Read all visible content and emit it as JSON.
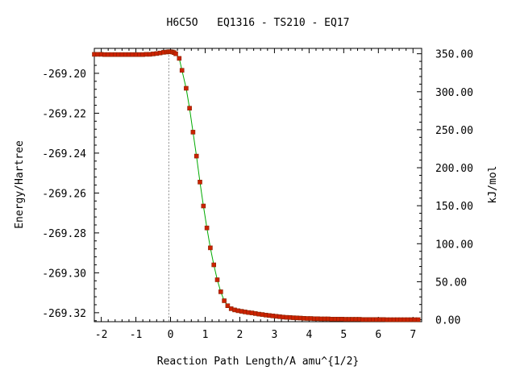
{
  "chart_data": {
    "type": "line",
    "title": "H6C5O   EQ1316 - TS210 - EQ17",
    "xlabel": "Reaction Path Length/A amu^{1/2}",
    "ylabel": "Energy/Hartree",
    "y2label": "kJ/mol",
    "xlim": [
      -2.2,
      7.25
    ],
    "ylim": [
      -269.3245,
      -269.1875
    ],
    "x_ticks": [
      -2,
      -1,
      0,
      1,
      2,
      3,
      4,
      5,
      6,
      7
    ],
    "x_tick_labels": [
      "-2",
      "-1",
      "0",
      "1",
      "2",
      "3",
      "4",
      "5",
      "6",
      "7"
    ],
    "y_ticks": [
      -269.32,
      -269.3,
      -269.28,
      -269.26,
      -269.24,
      -269.22,
      -269.2
    ],
    "y_tick_labels": [
      "-269.32",
      "-269.30",
      "-269.28",
      "-269.26",
      "-269.24",
      "-269.22",
      "-269.20"
    ],
    "y2_ticks": [
      0,
      50,
      100,
      150,
      200,
      250,
      300,
      350
    ],
    "y2_tick_labels": [
      "0.00",
      "50.00",
      "100.00",
      "150.00",
      "200.00",
      "250.00",
      "300.00",
      "350.00"
    ],
    "y2_zero_energy": -269.3235,
    "ts_marker_x": -0.05,
    "grid": false,
    "line_color": "#00aa00",
    "marker_color": "#cc2200",
    "marker_edge_color": "#882200",
    "series": [
      {
        "x": [
          -2.2,
          -2.1,
          -2.0,
          -1.9,
          -1.8,
          -1.7,
          -1.6,
          -1.5,
          -1.4,
          -1.3,
          -1.2,
          -1.1,
          -1.0,
          -0.9,
          -0.8,
          -0.7,
          -0.6,
          -0.5,
          -0.4,
          -0.3,
          -0.2,
          -0.1,
          -0.05,
          0.0,
          0.05,
          0.1,
          0.15,
          0.25,
          0.33,
          0.45,
          0.55,
          0.65,
          0.75,
          0.85,
          0.95,
          1.05,
          1.15,
          1.25,
          1.35,
          1.45,
          1.55,
          1.65,
          1.75,
          1.85,
          1.95,
          2.05,
          2.15,
          2.25,
          2.35,
          2.45,
          2.55,
          2.65,
          2.75,
          2.85,
          2.95,
          3.05,
          3.15,
          3.25,
          3.35,
          3.45,
          3.55,
          3.65,
          3.75,
          3.85,
          3.95,
          4.05,
          4.15,
          4.25,
          4.35,
          4.45,
          4.55,
          4.65,
          4.75,
          4.85,
          4.95,
          5.05,
          5.15,
          5.25,
          5.35,
          5.45,
          5.55,
          5.65,
          5.75,
          5.85,
          5.95,
          6.05,
          6.15,
          6.25,
          6.35,
          6.45,
          6.55,
          6.65,
          6.75,
          6.85,
          6.95,
          7.05,
          7.15
        ],
        "y": [
          -269.1905,
          -269.1905,
          -269.1905,
          -269.1906,
          -269.1906,
          -269.1906,
          -269.1906,
          -269.1906,
          -269.1906,
          -269.1906,
          -269.1906,
          -269.1906,
          -269.1906,
          -269.1906,
          -269.1906,
          -269.1905,
          -269.1905,
          -269.1903,
          -269.1901,
          -269.1898,
          -269.1895,
          -269.1893,
          -269.1892,
          -269.1892,
          -269.1893,
          -269.1896,
          -269.1902,
          -269.1925,
          -269.1985,
          -269.2075,
          -269.2175,
          -269.2295,
          -269.2415,
          -269.2545,
          -269.2665,
          -269.2775,
          -269.2875,
          -269.296,
          -269.3035,
          -269.3095,
          -269.314,
          -269.3165,
          -269.318,
          -269.3186,
          -269.319,
          -269.3193,
          -269.3196,
          -269.3199,
          -269.3201,
          -269.3204,
          -269.3207,
          -269.3209,
          -269.3212,
          -269.3214,
          -269.3216,
          -269.3218,
          -269.322,
          -269.3222,
          -269.3223,
          -269.3224,
          -269.3225,
          -269.3226,
          -269.3227,
          -269.3228,
          -269.3229,
          -269.3229,
          -269.323,
          -269.323,
          -269.3231,
          -269.3231,
          -269.3231,
          -269.3232,
          -269.3232,
          -269.3232,
          -269.3232,
          -269.3233,
          -269.3233,
          -269.3233,
          -269.3233,
          -269.3233,
          -269.3234,
          -269.3234,
          -269.3234,
          -269.3234,
          -269.3234,
          -269.3234,
          -269.3234,
          -269.3235,
          -269.3235,
          -269.3235,
          -269.3235,
          -269.3235,
          -269.3235,
          -269.3235,
          -269.3235,
          -269.3235,
          -269.3235
        ]
      }
    ]
  }
}
